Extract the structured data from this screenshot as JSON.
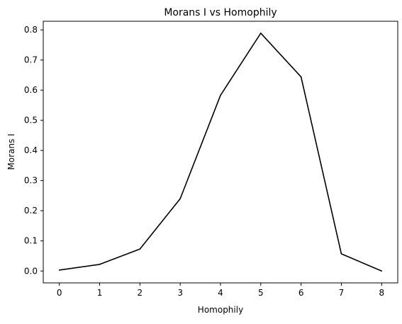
{
  "chart_data": {
    "type": "line",
    "title": "Morans I vs Homophily",
    "xlabel": "Homophily",
    "ylabel": "Morans I",
    "x": [
      0,
      1,
      2,
      3,
      4,
      5,
      6,
      7,
      8
    ],
    "series": [
      {
        "values": [
          0.003,
          0.022,
          0.073,
          0.24,
          0.583,
          0.789,
          0.644,
          0.057,
          0.0
        ],
        "color": "#000000"
      }
    ],
    "xticks": [
      0,
      1,
      2,
      3,
      4,
      5,
      6,
      7,
      8
    ],
    "xtick_labels": [
      "0",
      "1",
      "2",
      "3",
      "4",
      "5",
      "6",
      "7",
      "8"
    ],
    "yticks": [
      0.0,
      0.1,
      0.2,
      0.3,
      0.4,
      0.5,
      0.6,
      0.7,
      0.8
    ],
    "ytick_labels": [
      "0.0",
      "0.1",
      "0.2",
      "0.3",
      "0.4",
      "0.5",
      "0.6",
      "0.7",
      "0.8"
    ],
    "xlim": [
      -0.4,
      8.4
    ],
    "ylim": [
      -0.0394,
      0.8286
    ],
    "grid": false,
    "legend": "none"
  }
}
